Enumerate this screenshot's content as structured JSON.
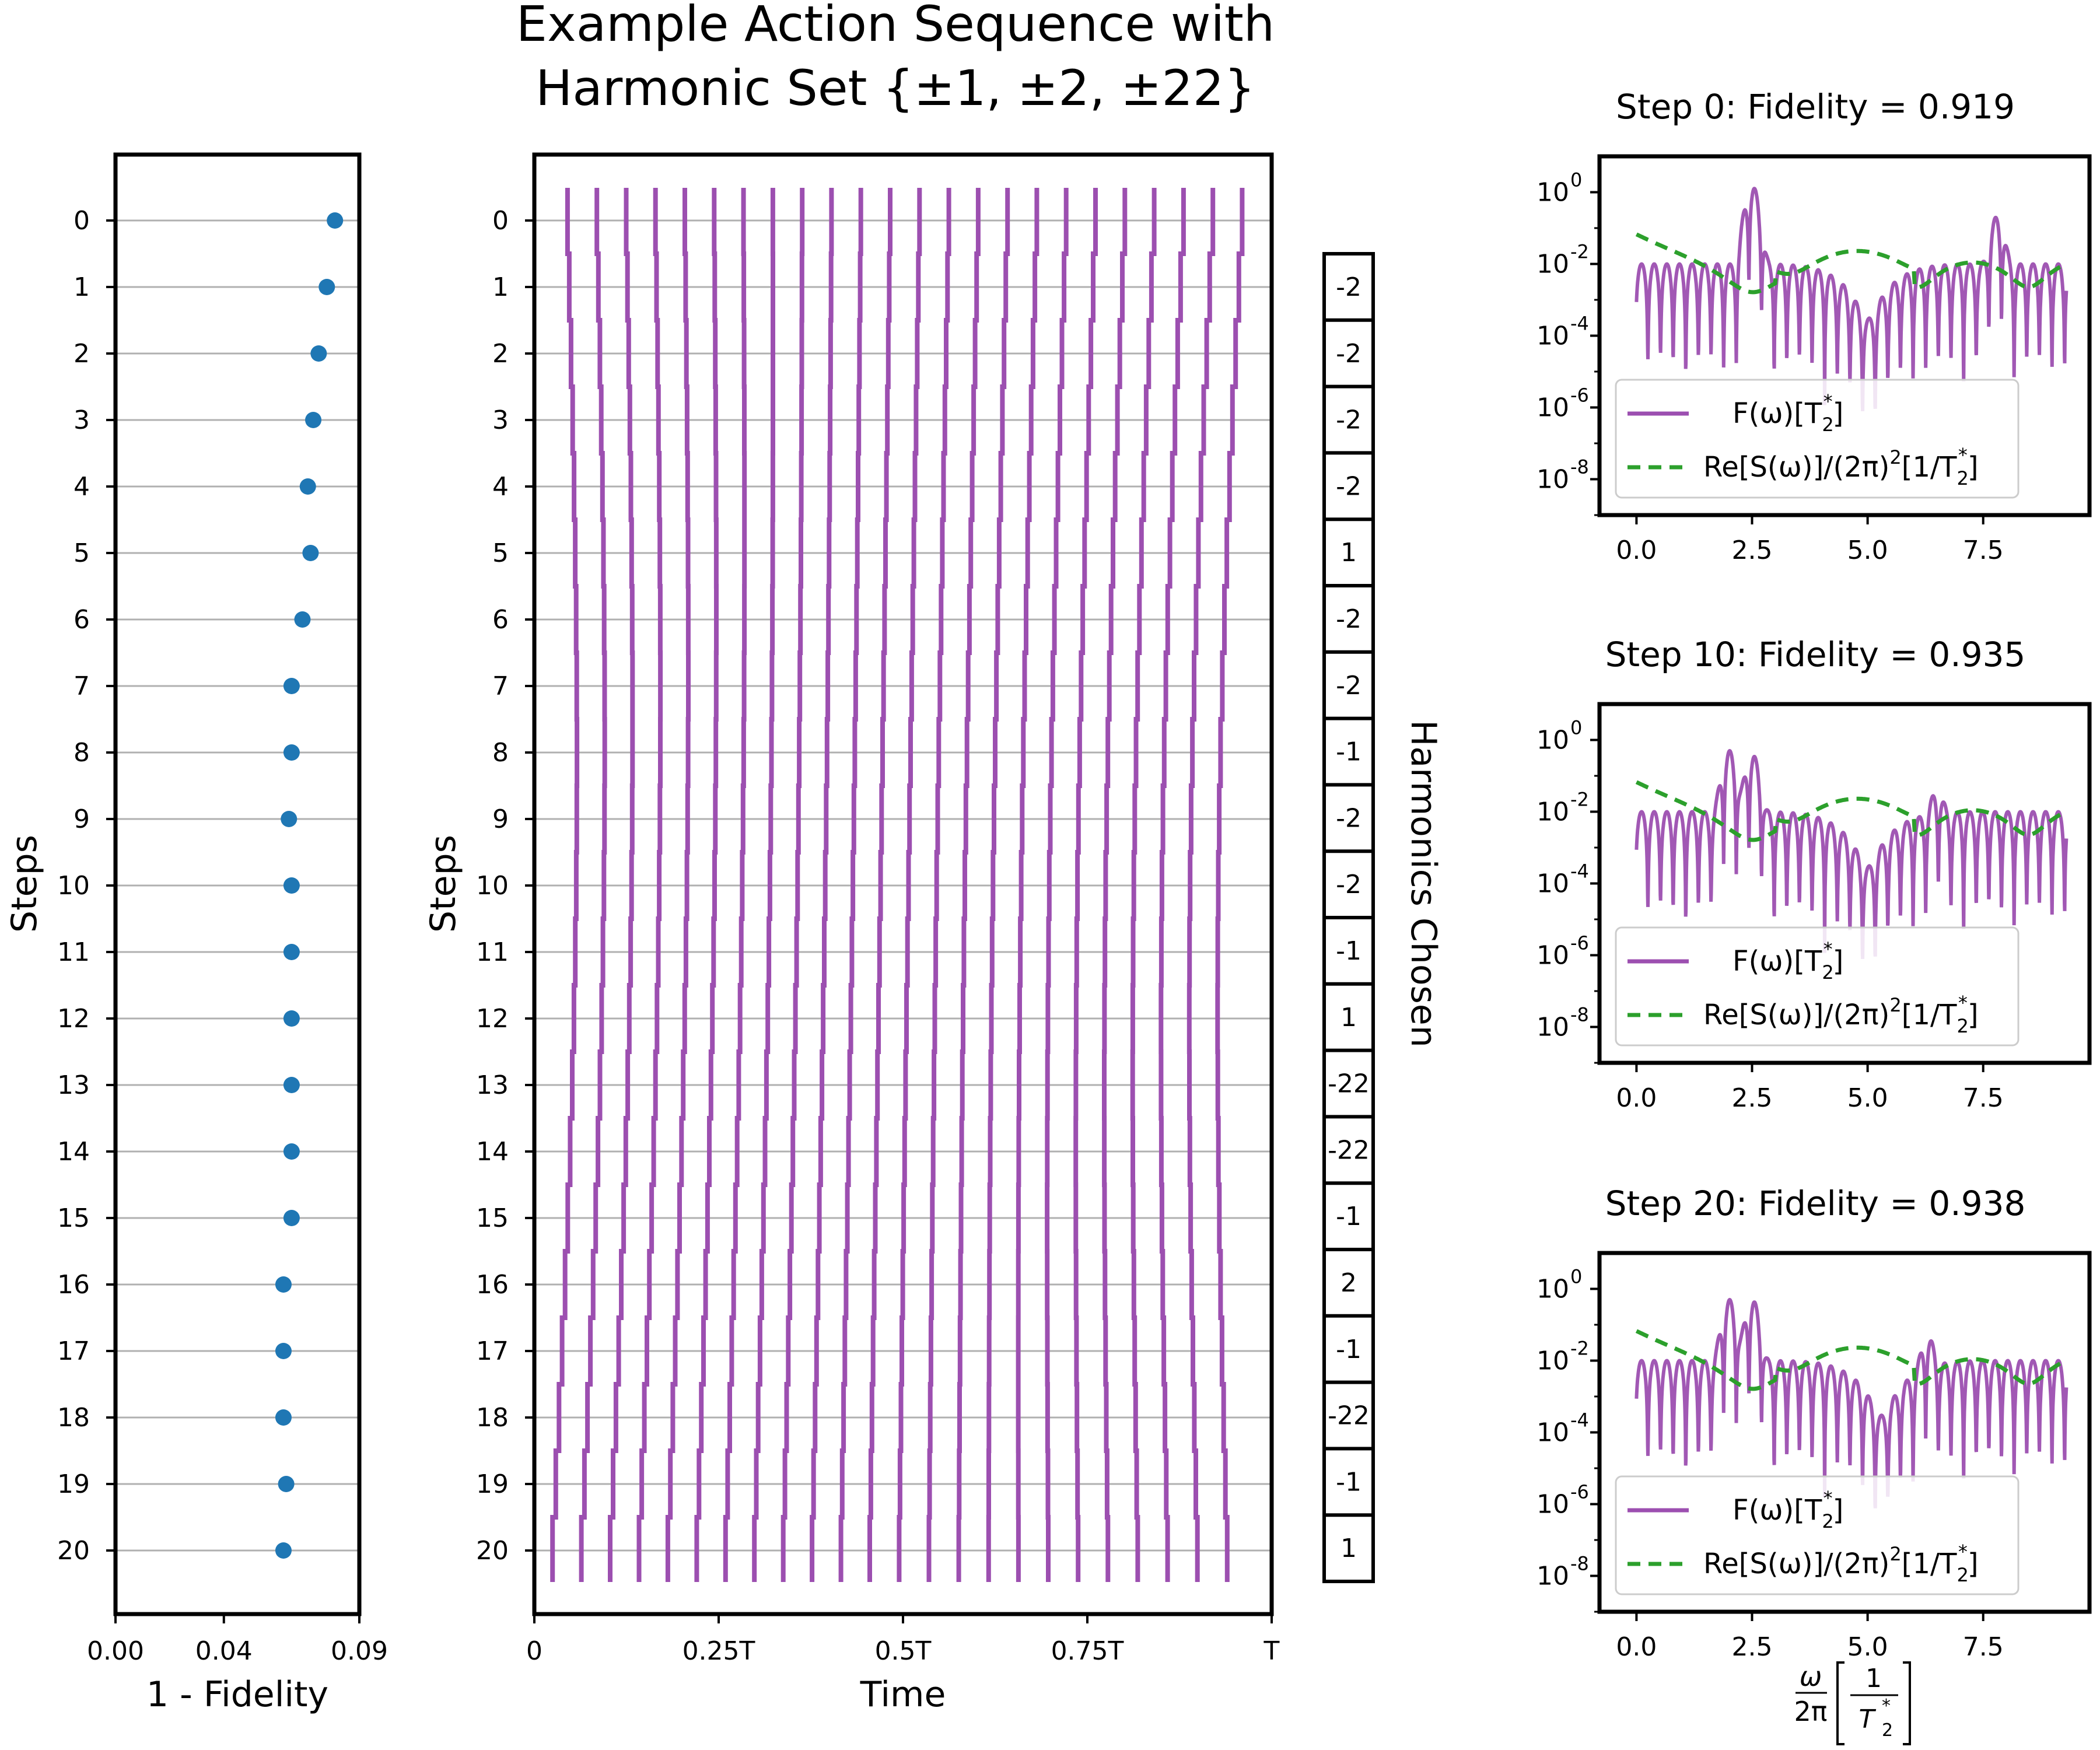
{
  "figure_title": [
    "Example Action Sequence with",
    "Harmonic Set {±1, ±2, ±22}"
  ],
  "colors": {
    "fidelity_point": "#1f77b4",
    "pulse": "#9c4fb0",
    "filter": "#9c4fb0",
    "noise": "#2ca02c",
    "grid": "#b0b0b0"
  },
  "chart_data": [
    {
      "id": "infidelity",
      "type": "scatter",
      "xlabel": "1 - Fidelity",
      "ylabel": "Steps",
      "xlim": [
        0.0,
        0.09
      ],
      "xticks": [
        0.0,
        0.04,
        0.09
      ],
      "xtick_labels": [
        "0.00",
        "0.04",
        "0.09"
      ],
      "steps": [
        0,
        1,
        2,
        3,
        4,
        5,
        6,
        7,
        8,
        9,
        10,
        11,
        12,
        13,
        14,
        15,
        16,
        17,
        18,
        19,
        20
      ],
      "values": [
        0.081,
        0.078,
        0.075,
        0.073,
        0.071,
        0.072,
        0.069,
        0.065,
        0.065,
        0.064,
        0.065,
        0.065,
        0.065,
        0.065,
        0.065,
        0.065,
        0.062,
        0.062,
        0.062,
        0.063,
        0.062
      ],
      "grid": "horizontal"
    },
    {
      "id": "pulse-sequence",
      "type": "line",
      "xlabel": "Time",
      "ylabel": "Steps",
      "xticks": [
        0,
        0.25,
        0.5,
        0.75,
        1
      ],
      "xtick_labels": [
        "0",
        "0.25T",
        "0.5T",
        "0.75T",
        "T"
      ],
      "steps": [
        0,
        1,
        2,
        3,
        4,
        5,
        6,
        7,
        8,
        9,
        10,
        11,
        12,
        13,
        14,
        15,
        16,
        17,
        18,
        19,
        20
      ],
      "pulse_count": 24,
      "right_label": "Harmonics Chosen",
      "harmonics_chosen": [
        "-2",
        "-2",
        "-2",
        "-2",
        "1",
        "-2",
        "-2",
        "-1",
        "-2",
        "-2",
        "-1",
        "1",
        "-22",
        "-22",
        "-1",
        "2",
        "-1",
        "-22",
        "-1",
        "1"
      ]
    },
    {
      "id": "spectrum-step0",
      "type": "line",
      "title": "Step 0: Fidelity = 0.919",
      "yscale": "log",
      "ylim": [
        1e-09,
        10
      ],
      "ytick_labels": [
        "10",
        "10",
        "10",
        "10",
        "10"
      ],
      "ytick_exponents": [
        "0",
        "-2",
        "-4",
        "-6",
        "-8"
      ],
      "xlim": [
        -0.8,
        9.8
      ],
      "xtick_labels": [
        "0.0",
        "2.5",
        "5.0",
        "7.5"
      ],
      "filter_peaks": [
        [
          2.5,
          1.5
        ],
        [
          7.8,
          0.2
        ]
      ],
      "filter_floor_dip_center": 5.0,
      "legend": [
        "F(ω)[T",
        "Re[S(ω)]/(2π)",
        "[1/T"
      ],
      "legend_placement": "lower-left"
    },
    {
      "id": "spectrum-step10",
      "type": "line",
      "title": "Step 10: Fidelity = 0.935",
      "yscale": "log",
      "ylim": [
        1e-09,
        10
      ],
      "ytick_labels": [
        "10",
        "10",
        "10",
        "10",
        "10"
      ],
      "ytick_exponents": [
        "0",
        "-2",
        "-4",
        "-6",
        "-8"
      ],
      "xlim": [
        -0.8,
        9.8
      ],
      "xtick_labels": [
        "0.0",
        "2.5",
        "5.0",
        "7.5"
      ],
      "filter_peaks": [
        [
          2.0,
          0.5
        ],
        [
          2.5,
          0.4
        ],
        [
          6.5,
          0.03
        ]
      ],
      "filter_floor_dip_center": 5.0,
      "legend": [
        "F(ω)[T",
        "Re[S(ω)]/(2π)",
        "[1/T"
      ],
      "legend_placement": "lower-left"
    },
    {
      "id": "spectrum-step20",
      "type": "line",
      "title": "Step 20: Fidelity = 0.938",
      "yscale": "log",
      "ylim": [
        1e-09,
        10
      ],
      "ytick_labels": [
        "10",
        "10",
        "10",
        "10",
        "10"
      ],
      "ytick_exponents": [
        "0",
        "-2",
        "-4",
        "-6",
        "-8"
      ],
      "xlim": [
        -0.8,
        9.8
      ],
      "xtick_labels": [
        "0.0",
        "2.5",
        "5.0",
        "7.5"
      ],
      "x_axis_label": [
        "ω",
        "2π",
        "1",
        "T"
      ],
      "filter_peaks": [
        [
          2.0,
          0.5
        ],
        [
          2.5,
          0.5
        ],
        [
          6.3,
          0.04
        ]
      ],
      "filter_floor_dip_center": 5.3,
      "legend": [
        "F(ω)[T",
        "Re[S(ω)]/(2π)",
        "[1/T"
      ],
      "legend_placement": "lower-left"
    }
  ]
}
